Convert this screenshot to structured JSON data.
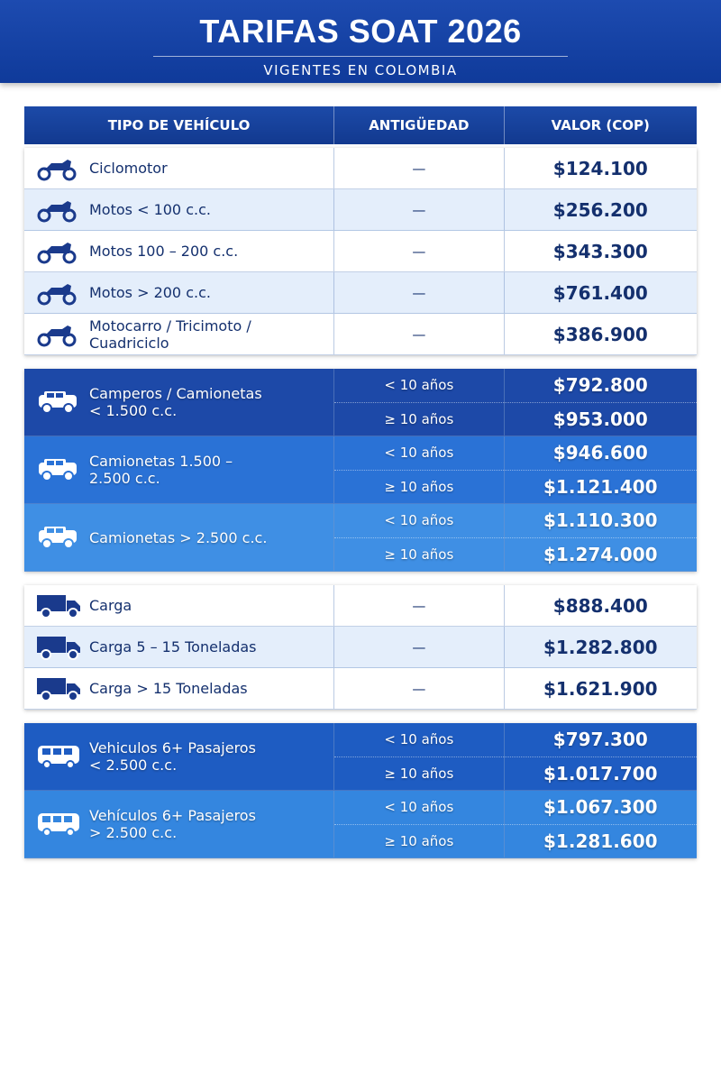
{
  "header": {
    "title": "TARIFAS SOAT 2026",
    "subtitle": "VIGENTES EN COLOMBIA"
  },
  "table": {
    "columns": [
      "TIPO DE VEHÍCULO",
      "ANTIGÜEDAD",
      "VALOR (COP)"
    ],
    "groups": [
      {
        "rows": [
          {
            "vehicle": "Ciclomotor",
            "entries": [
              {
                "age": "—",
                "value": "$124.100"
              }
            ]
          },
          {
            "vehicle": "Motos < 100 c.c.",
            "entries": [
              {
                "age": "—",
                "value": "$256.200"
              }
            ]
          },
          {
            "vehicle": "Motos 100 – 200 c.c.",
            "entries": [
              {
                "age": "—",
                "value": "$343.300"
              }
            ]
          },
          {
            "vehicle": "Motos > 200 c.c.",
            "entries": [
              {
                "age": "—",
                "value": "$761.400"
              }
            ]
          },
          {
            "vehicle": "Motocarro / Tricimoto / Cuadriciclo",
            "entries": [
              {
                "age": "—",
                "value": "$386.900"
              }
            ]
          }
        ]
      },
      {
        "rows": [
          {
            "vehicle": "Camperos / Camionetas < 1.500 c.c.",
            "entries": [
              {
                "age": "< 10 años",
                "value": "$792.800"
              },
              {
                "age": "≥ 10 años",
                "value": "$953.000"
              }
            ]
          },
          {
            "vehicle": "Camionetas 1.500 – 2.500 c.c.",
            "entries": [
              {
                "age": "< 10 años",
                "value": "$946.600"
              },
              {
                "age": "≥ 10 años",
                "value": "$1.121.400"
              }
            ]
          },
          {
            "vehicle": "Camionetas > 2.500 c.c.",
            "entries": [
              {
                "age": "< 10 años",
                "value": "$1.110.300"
              },
              {
                "age": "≥ 10 años",
                "value": "$1.274.000"
              }
            ]
          }
        ]
      },
      {
        "rows": [
          {
            "vehicle": "Carga",
            "entries": [
              {
                "age": "—",
                "value": "$888.400"
              }
            ]
          },
          {
            "vehicle": "Carga 5 – 15 Toneladas",
            "entries": [
              {
                "age": "—",
                "value": "$1.282.800"
              }
            ]
          },
          {
            "vehicle": "Carga > 15 Toneladas",
            "entries": [
              {
                "age": "—",
                "value": "$1.621.900"
              }
            ]
          }
        ]
      },
      {
        "rows": [
          {
            "vehicle": "Vehiculos 6+ Pasajeros < 2.500 c.c.",
            "entries": [
              {
                "age": "< 10 años",
                "value": "$797.300"
              },
              {
                "age": "≥ 10 años",
                "value": "$1.017.700"
              }
            ]
          },
          {
            "vehicle": "Vehículos 6+ Pasajeros > 2.500 c.c.",
            "entries": [
              {
                "age": "< 10 años",
                "value": "$1.067.300"
              },
              {
                "age": "≥ 10 años",
                "value": "$1.281.600"
              }
            ]
          }
        ]
      }
    ]
  }
}
